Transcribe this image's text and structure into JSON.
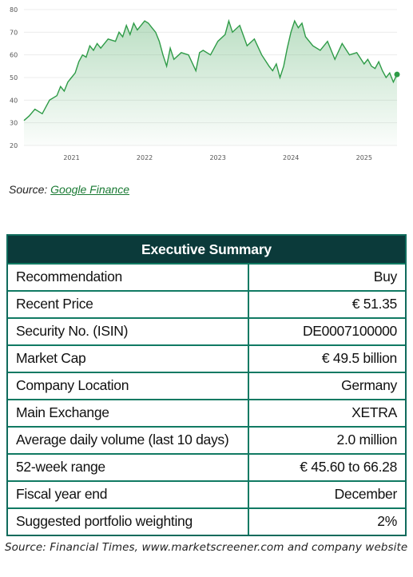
{
  "chart_data": {
    "type": "area",
    "x_ticks": [
      "2021",
      "2022",
      "2023",
      "2024",
      "2025"
    ],
    "y_ticks": [
      20,
      30,
      40,
      50,
      60,
      70,
      80
    ],
    "ylim": [
      20,
      80
    ],
    "xlim": [
      2020.35,
      2025.45
    ],
    "grid": true,
    "color": "#2e9b47",
    "x": [
      2020.35,
      2020.42,
      2020.5,
      2020.6,
      2020.7,
      2020.8,
      2020.85,
      2020.9,
      2020.95,
      2021.0,
      2021.05,
      2021.1,
      2021.15,
      2021.2,
      2021.25,
      2021.3,
      2021.35,
      2021.4,
      2021.5,
      2021.6,
      2021.65,
      2021.7,
      2021.75,
      2021.8,
      2021.85,
      2021.9,
      2021.95,
      2022.0,
      2022.05,
      2022.1,
      2022.15,
      2022.2,
      2022.25,
      2022.3,
      2022.35,
      2022.4,
      2022.5,
      2022.6,
      2022.7,
      2022.75,
      2022.8,
      2022.9,
      2023.0,
      2023.1,
      2023.15,
      2023.2,
      2023.3,
      2023.4,
      2023.5,
      2023.6,
      2023.7,
      2023.75,
      2023.8,
      2023.85,
      2023.9,
      2023.95,
      2024.0,
      2024.05,
      2024.1,
      2024.15,
      2024.2,
      2024.3,
      2024.4,
      2024.5,
      2024.6,
      2024.7,
      2024.8,
      2024.9,
      2025.0,
      2025.05,
      2025.1,
      2025.15,
      2025.2,
      2025.25,
      2025.3,
      2025.35,
      2025.4,
      2025.45
    ],
    "y": [
      31,
      33,
      36,
      34,
      40,
      42,
      46,
      44,
      48,
      50,
      52,
      57,
      60,
      59,
      64,
      62,
      65,
      63,
      67,
      66,
      70,
      68,
      73,
      69,
      74,
      71,
      73,
      75,
      74,
      72,
      70,
      66,
      60,
      55,
      63,
      58,
      61,
      60,
      53,
      61,
      62,
      60,
      66,
      69,
      75,
      70,
      73,
      64,
      67,
      60,
      55,
      53,
      56,
      50,
      55,
      63,
      70,
      75,
      72,
      74,
      68,
      64,
      62,
      66,
      58,
      65,
      60,
      61,
      56,
      58,
      55,
      54,
      57,
      53,
      50,
      52,
      48,
      51.35
    ]
  },
  "chart_source": {
    "prefix": "Source: ",
    "link": "Google Finance"
  },
  "summary": {
    "title": "Executive Summary",
    "rows": [
      {
        "label": "Recommendation",
        "value": "Buy"
      },
      {
        "label": "Recent Price",
        "value": "€ 51.35"
      },
      {
        "label": "Security No. (ISIN)",
        "value": "DE0007100000"
      },
      {
        "label": "Market Cap",
        "value": "€ 49.5 billion"
      },
      {
        "label": "Company Location",
        "value": "Germany"
      },
      {
        "label": "Main Exchange",
        "value": "XETRA"
      },
      {
        "label": "Average daily volume (last 10 days)",
        "value": "2.0 million"
      },
      {
        "label": "52-week range",
        "value": "€ 45.60 to 66.28"
      },
      {
        "label": "Fiscal year end",
        "value": "December"
      },
      {
        "label": "Suggested portfolio weighting",
        "value": "2%"
      }
    ]
  },
  "table_source": "Source: Financial Times, www.marketscreener.com and company website"
}
